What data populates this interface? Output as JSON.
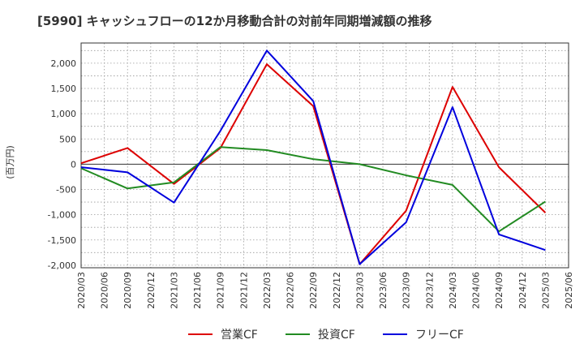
{
  "chart_data": {
    "type": "line",
    "title": "[5990]  キャッシュフローの12か月移動合計の対前年同期増減額の推移",
    "ylabel": "(百万円)",
    "xlabel": "",
    "ylim": [
      -2050,
      2400
    ],
    "yticks": [
      2000,
      1500,
      1000,
      500,
      0,
      -500,
      -1000,
      -1500,
      -2000
    ],
    "ytick_labels": [
      "2,000",
      "1,500",
      "1,000",
      "500",
      "0",
      "-500",
      "-1,000",
      "-1,500",
      "-2,000"
    ],
    "xticks": [
      "2020/03",
      "2020/06",
      "2020/09",
      "2020/12",
      "2021/03",
      "2021/06",
      "2021/09",
      "2021/12",
      "2022/03",
      "2022/06",
      "2022/09",
      "2022/12",
      "2023/03",
      "2023/06",
      "2023/09",
      "2023/12",
      "2024/03",
      "2024/06",
      "2024/09",
      "2024/12",
      "2025/03",
      "2025/06"
    ],
    "grid": true,
    "legend_position": "bottom",
    "x": [
      "2020/03",
      "2020/09",
      "2021/03",
      "2021/09",
      "2022/03",
      "2022/09",
      "2023/03",
      "2023/09",
      "2024/03",
      "2024/09",
      "2025/03"
    ],
    "series": [
      {
        "name": "営業CF",
        "color": "#dd0000",
        "values": [
          20,
          320,
          -390,
          320,
          1980,
          1150,
          -1980,
          -920,
          1530,
          -60,
          -960
        ]
      },
      {
        "name": "投資CF",
        "color": "#228b22",
        "values": [
          -80,
          -480,
          -360,
          340,
          280,
          100,
          0,
          -220,
          -410,
          -1330,
          -740
        ]
      },
      {
        "name": "フリーCF",
        "color": "#0000dd",
        "values": [
          -60,
          -160,
          -760,
          660,
          2250,
          1250,
          -1980,
          -1150,
          1130,
          -1390,
          -1700
        ]
      }
    ]
  }
}
